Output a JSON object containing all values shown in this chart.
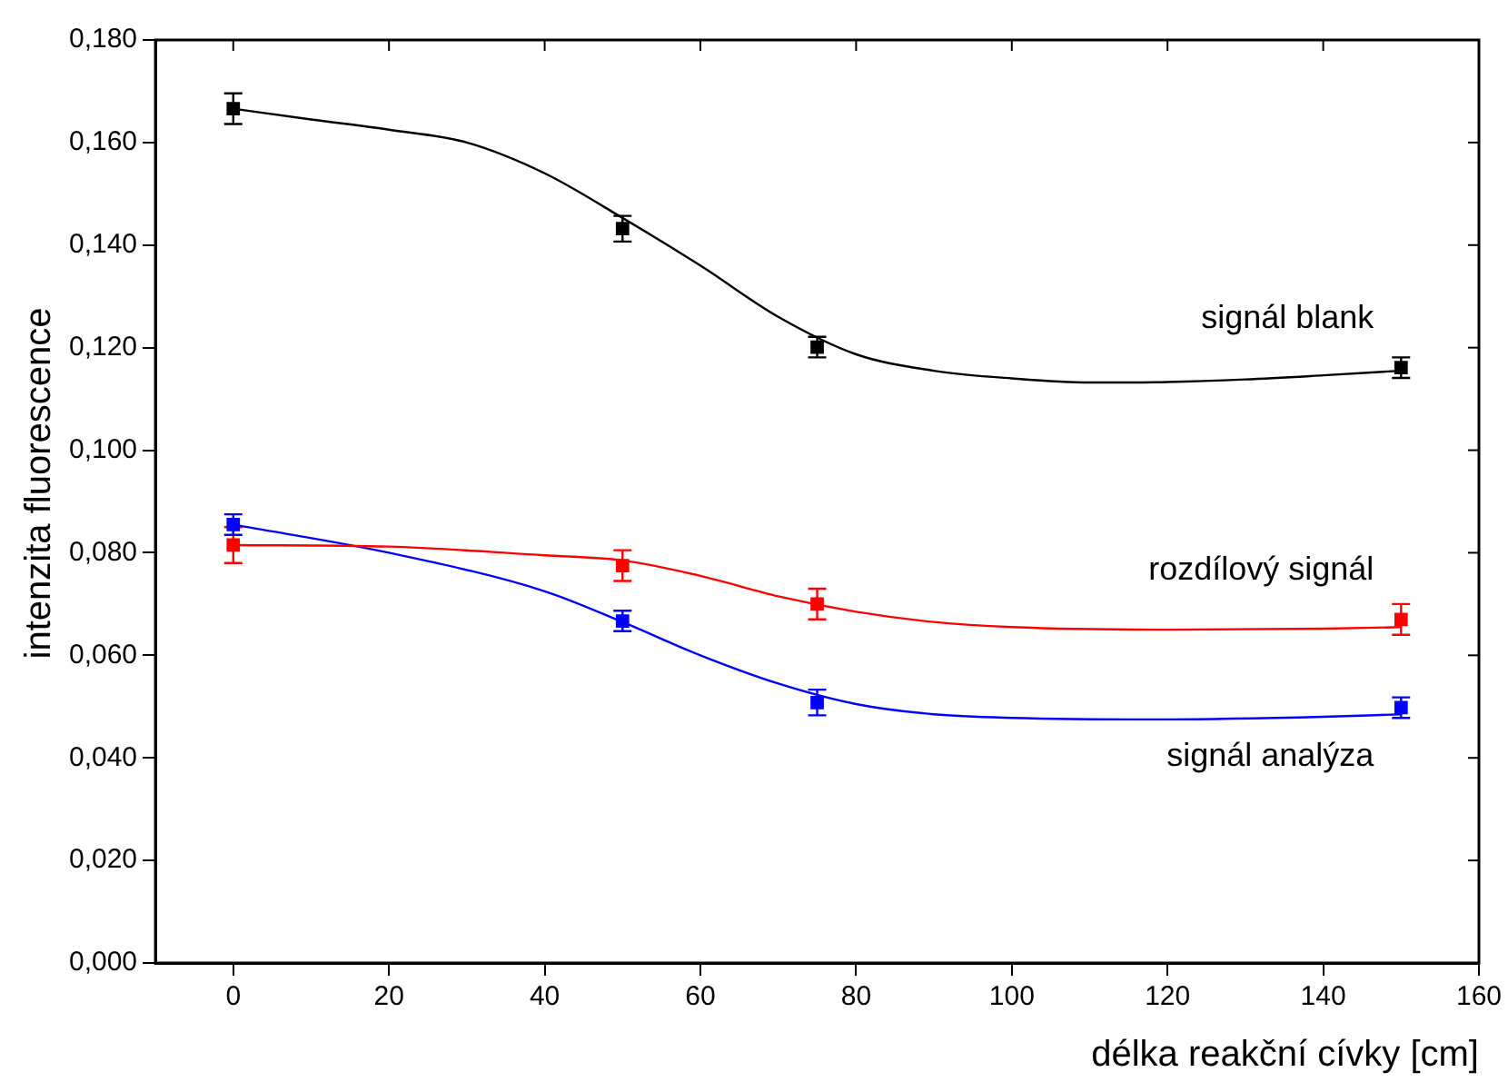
{
  "chart_data": {
    "type": "scatter",
    "xlabel": "délka reakční cívky [cm]",
    "ylabel": "intenzita fluorescence",
    "xlim": [
      -10,
      160
    ],
    "xticks": [
      0,
      20,
      40,
      60,
      80,
      100,
      120,
      140,
      160
    ],
    "ylim": [
      0,
      0.18
    ],
    "yticks": [
      {
        "value": 0,
        "label": "0,000"
      },
      {
        "value": 0.02,
        "label": "0,020"
      },
      {
        "value": 0.04,
        "label": "0,040"
      },
      {
        "value": 0.06,
        "label": "0,060"
      },
      {
        "value": 0.08,
        "label": "0,080"
      },
      {
        "value": 0.1,
        "label": "0,100"
      },
      {
        "value": 0.12,
        "label": "0,120"
      },
      {
        "value": 0.14,
        "label": "0,140"
      },
      {
        "value": 0.16,
        "label": "0,160"
      },
      {
        "value": 0.18,
        "label": "0,180"
      }
    ],
    "grid": false,
    "legend": false,
    "series": [
      {
        "name": "signál blank",
        "marker": "square",
        "color": "#000000",
        "x": [
          0,
          50,
          75,
          150
        ],
        "values": [
          0.1666,
          0.1432,
          0.1201,
          0.1161
        ],
        "errors": [
          0.003,
          0.0025,
          0.002,
          0.002
        ]
      },
      {
        "name": "rozdílový signál",
        "marker": "square",
        "color": "#ff0000",
        "x": [
          0,
          50,
          75,
          150
        ],
        "values": [
          0.0815,
          0.0775,
          0.07,
          0.067
        ],
        "errors": [
          0.0035,
          0.003,
          0.003,
          0.003
        ]
      },
      {
        "name": "signál analýza",
        "marker": "square",
        "color": "#0000ff",
        "x": [
          0,
          50,
          75,
          150
        ],
        "values": [
          0.0855,
          0.0667,
          0.0508,
          0.0498
        ],
        "errors": [
          0.002,
          0.002,
          0.0025,
          0.002
        ]
      },
      {
        "type": "line",
        "marker": "none",
        "color": "#000000",
        "x": [
          0,
          10,
          20,
          30,
          40,
          50,
          60,
          70,
          80,
          90,
          100,
          110,
          120,
          130,
          140,
          150
        ],
        "values": [
          0.1666,
          0.1645,
          0.1625,
          0.16,
          0.154,
          0.1453,
          0.136,
          0.126,
          0.1187,
          0.1155,
          0.114,
          0.1132,
          0.1133,
          0.1138,
          0.1146,
          0.1155
        ]
      },
      {
        "type": "line",
        "marker": "none",
        "color": "#ff0000",
        "x": [
          0,
          20,
          40,
          50,
          60,
          70,
          80,
          90,
          100,
          120,
          140,
          150
        ],
        "values": [
          0.0815,
          0.0812,
          0.0795,
          0.0785,
          0.0755,
          0.0715,
          0.0685,
          0.0665,
          0.0655,
          0.065,
          0.0652,
          0.0655
        ]
      },
      {
        "type": "line",
        "marker": "none",
        "color": "#0000ff",
        "x": [
          0,
          20,
          40,
          50,
          60,
          70,
          80,
          90,
          100,
          120,
          140,
          150
        ],
        "values": [
          0.0855,
          0.08,
          0.0725,
          0.0665,
          0.06,
          0.0545,
          0.0505,
          0.0485,
          0.0478,
          0.0475,
          0.048,
          0.0485
        ]
      }
    ]
  }
}
